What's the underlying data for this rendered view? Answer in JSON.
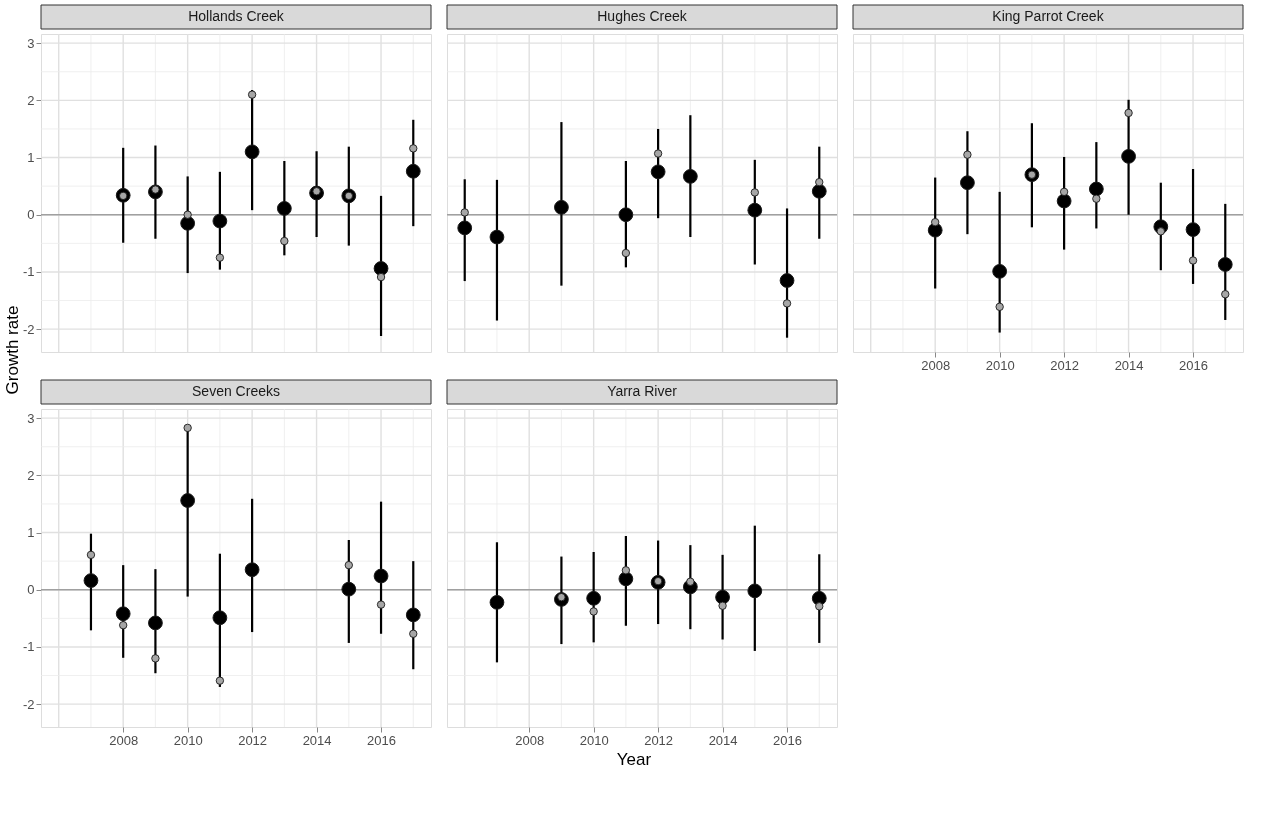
{
  "chart_data": [
    {
      "type": "scatter",
      "title": "Hollands Creek",
      "ylabel": "Growth rate",
      "x": [
        2008,
        2009,
        2010,
        2011,
        2012,
        2013,
        2014,
        2015,
        2016,
        2017
      ],
      "series": [
        {
          "color": "#000000",
          "values": [
            0.34,
            0.4,
            -0.15,
            -0.11,
            1.1,
            0.11,
            0.38,
            0.33,
            -0.94,
            0.76
          ],
          "errors": [
            [
              -0.49,
              1.17
            ],
            [
              -0.42,
              1.21
            ],
            [
              -1.02,
              0.67
            ],
            [
              -0.96,
              0.75
            ],
            [
              0.08,
              2.18
            ],
            [
              -0.71,
              0.94
            ],
            [
              -0.39,
              1.11
            ],
            [
              -0.54,
              1.19
            ],
            [
              -2.12,
              0.33
            ],
            [
              -0.2,
              1.66
            ]
          ]
        },
        {
          "color": "#a6a6a6",
          "values": [
            0.33,
            0.44,
            0.0,
            -0.75,
            2.1,
            -0.46,
            0.41,
            0.33,
            -1.09,
            1.16
          ]
        }
      ],
      "xlim": [
        2005.45,
        2017.55
      ],
      "ylim": [
        -2.4,
        3.16
      ],
      "xticks": [
        2008,
        2010,
        2012,
        2014,
        2016
      ],
      "yticks": [
        -2,
        -1,
        0,
        1,
        2,
        3
      ],
      "grid": true,
      "marker": "circle",
      "tick_labels": "y",
      "ref_lines": [
        {
          "axis": "y",
          "value": 0,
          "color": "#a0a0a0"
        }
      ]
    },
    {
      "type": "scatter",
      "title": "Hughes Creek",
      "x": [
        2006,
        2007,
        2009,
        2011,
        2012,
        2013,
        2015,
        2016,
        2017
      ],
      "series": [
        {
          "color": "#000000",
          "values": [
            -0.23,
            -0.39,
            0.13,
            0.0,
            0.75,
            0.67,
            0.08,
            -1.15,
            0.41
          ],
          "errors": [
            [
              -1.16,
              0.62
            ],
            [
              -1.85,
              0.61
            ],
            [
              -1.24,
              1.62
            ],
            [
              -0.92,
              0.94
            ],
            [
              -0.06,
              1.5
            ],
            [
              -0.39,
              1.74
            ],
            [
              -0.87,
              0.96
            ],
            [
              -2.15,
              0.11
            ],
            [
              -0.42,
              1.19
            ]
          ]
        },
        {
          "color": "#a6a6a6",
          "values": [
            0.04,
            null,
            null,
            -0.67,
            1.07,
            null,
            0.39,
            -1.55,
            0.57
          ]
        }
      ],
      "xlim": [
        2005.45,
        2017.55
      ],
      "ylim": [
        -2.4,
        3.16
      ],
      "xticks": [
        2008,
        2010,
        2012,
        2014,
        2016
      ],
      "yticks": [
        -2,
        -1,
        0,
        1,
        2,
        3
      ],
      "grid": true,
      "marker": "circle",
      "tick_labels": false,
      "ref_lines": [
        {
          "axis": "y",
          "value": 0,
          "color": "#a0a0a0"
        }
      ]
    },
    {
      "type": "scatter",
      "title": "King Parrot Creek",
      "x": [
        2008,
        2009,
        2010,
        2011,
        2012,
        2013,
        2014,
        2015,
        2016,
        2017
      ],
      "series": [
        {
          "color": "#000000",
          "values": [
            -0.27,
            0.56,
            -0.99,
            0.7,
            0.24,
            0.45,
            1.02,
            -0.21,
            -0.26,
            -0.87
          ],
          "errors": [
            [
              -1.29,
              0.65
            ],
            [
              -0.34,
              1.46
            ],
            [
              -2.06,
              0.4
            ],
            [
              -0.22,
              1.6
            ],
            [
              -0.61,
              1.01
            ],
            [
              -0.24,
              1.27
            ],
            [
              0.0,
              2.01
            ],
            [
              -0.97,
              0.56
            ],
            [
              -1.21,
              0.8
            ],
            [
              -1.84,
              0.19
            ]
          ]
        },
        {
          "color": "#a6a6a6",
          "values": [
            -0.13,
            1.05,
            -1.61,
            0.7,
            0.4,
            0.28,
            1.78,
            -0.29,
            -0.8,
            -1.39
          ]
        }
      ],
      "xlim": [
        2005.45,
        2017.55
      ],
      "ylim": [
        -2.4,
        3.16
      ],
      "xticks": [
        2008,
        2010,
        2012,
        2014,
        2016
      ],
      "yticks": [
        -2,
        -1,
        0,
        1,
        2,
        3
      ],
      "grid": true,
      "marker": "circle",
      "tick_labels": "x",
      "ref_lines": [
        {
          "axis": "y",
          "value": 0,
          "color": "#a0a0a0"
        }
      ]
    },
    {
      "type": "scatter",
      "title": "Seven Creeks",
      "x": [
        2007,
        2008,
        2009,
        2010,
        2011,
        2012,
        2015,
        2016,
        2017
      ],
      "series": [
        {
          "color": "#000000",
          "values": [
            0.16,
            -0.42,
            -0.58,
            1.56,
            -0.49,
            0.35,
            0.01,
            0.24,
            -0.44
          ],
          "errors": [
            [
              -0.71,
              0.98
            ],
            [
              -1.19,
              0.43
            ],
            [
              -1.46,
              0.36
            ],
            [
              -0.12,
              2.85
            ],
            [
              -1.7,
              0.63
            ],
            [
              -0.74,
              1.59
            ],
            [
              -0.93,
              0.87
            ],
            [
              -0.77,
              1.54
            ],
            [
              -1.39,
              0.5
            ]
          ]
        },
        {
          "color": "#a6a6a6",
          "values": [
            0.61,
            -0.62,
            -1.2,
            2.83,
            -1.59,
            null,
            0.43,
            -0.26,
            -0.77
          ]
        }
      ],
      "xlim": [
        2005.45,
        2017.55
      ],
      "ylim": [
        -2.4,
        3.16
      ],
      "xticks": [
        2008,
        2010,
        2012,
        2014,
        2016
      ],
      "yticks": [
        -2,
        -1,
        0,
        1,
        2,
        3
      ],
      "grid": true,
      "marker": "circle",
      "ref_lines": [
        {
          "axis": "y",
          "value": 0,
          "color": "#a0a0a0"
        }
      ]
    },
    {
      "type": "scatter",
      "title": "Yarra River",
      "xlabel": "Year",
      "x": [
        2007,
        2009,
        2010,
        2011,
        2012,
        2013,
        2014,
        2015,
        2017
      ],
      "series": [
        {
          "color": "#000000",
          "values": [
            -0.22,
            -0.17,
            -0.15,
            0.19,
            0.13,
            0.05,
            -0.13,
            -0.02,
            -0.15
          ],
          "errors": [
            [
              -1.27,
              0.83
            ],
            [
              -0.95,
              0.58
            ],
            [
              -0.92,
              0.66
            ],
            [
              -0.63,
              0.94
            ],
            [
              -0.6,
              0.86
            ],
            [
              -0.69,
              0.78
            ],
            [
              -0.87,
              0.61
            ],
            [
              -1.07,
              1.12
            ],
            [
              -0.93,
              0.62
            ]
          ]
        },
        {
          "color": "#a6a6a6",
          "values": [
            null,
            -0.13,
            -0.38,
            0.34,
            0.15,
            0.14,
            -0.28,
            null,
            -0.29
          ]
        }
      ],
      "xlim": [
        2005.45,
        2017.55
      ],
      "ylim": [
        -2.4,
        3.16
      ],
      "xticks": [
        2008,
        2010,
        2012,
        2014,
        2016
      ],
      "yticks": [
        -2,
        -1,
        0,
        1,
        2,
        3
      ],
      "grid": true,
      "marker": "circle",
      "tick_labels": "x",
      "ref_lines": [
        {
          "axis": "y",
          "value": 0,
          "color": "#a0a0a0"
        }
      ]
    }
  ]
}
